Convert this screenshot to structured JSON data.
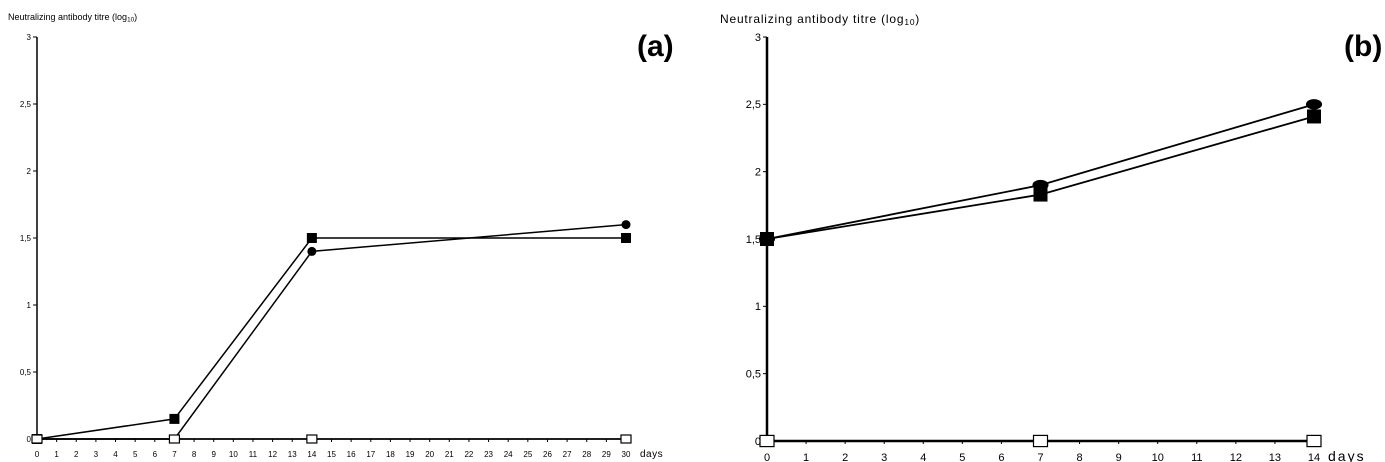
{
  "chart_data": [
    {
      "type": "line",
      "panel_label": "(a)",
      "ylabel_main": "Neutralizing antibody titre (log",
      "ylabel_sub": "10",
      "ylabel_close": ")",
      "xlabel": "days",
      "xlim": [
        0,
        30
      ],
      "ylim": [
        0,
        3
      ],
      "xticks": [
        0,
        1,
        2,
        3,
        4,
        5,
        6,
        7,
        8,
        9,
        10,
        11,
        12,
        13,
        14,
        15,
        16,
        17,
        18,
        19,
        20,
        21,
        22,
        23,
        24,
        25,
        26,
        27,
        28,
        29,
        30
      ],
      "yticks": [
        {
          "value": 0,
          "label": "0"
        },
        {
          "value": 0.5,
          "label": "0,5"
        },
        {
          "value": 1,
          "label": "1"
        },
        {
          "value": 1.5,
          "label": "1,5"
        },
        {
          "value": 2,
          "label": "2"
        },
        {
          "value": 2.5,
          "label": "2,5"
        },
        {
          "value": 3,
          "label": "3"
        }
      ],
      "grid": false,
      "series": [
        {
          "marker": "filled-square",
          "x": [
            0,
            7,
            14,
            30
          ],
          "y": [
            0,
            0.15,
            1.5,
            1.5
          ]
        },
        {
          "marker": "filled-circle",
          "x": [
            0,
            7,
            14,
            30
          ],
          "y": [
            0,
            0,
            1.4,
            1.6
          ]
        },
        {
          "marker": "open-square",
          "x": [
            0,
            7,
            14,
            30
          ],
          "y": [
            0,
            0,
            0,
            0
          ]
        }
      ]
    },
    {
      "type": "line",
      "panel_label": "(b)",
      "ylabel_main": "Neutralizing antibody titre (log",
      "ylabel_sub": "10",
      "ylabel_close": ")",
      "xlabel": "days",
      "xlim": [
        0,
        14
      ],
      "ylim": [
        0,
        3
      ],
      "xticks": [
        0,
        1,
        2,
        3,
        4,
        5,
        6,
        7,
        8,
        9,
        10,
        11,
        12,
        13,
        14
      ],
      "yticks": [
        {
          "value": 0,
          "label": "0"
        },
        {
          "value": 0.5,
          "label": "0,5"
        },
        {
          "value": 1,
          "label": "1"
        },
        {
          "value": 1.5,
          "label": "1,5"
        },
        {
          "value": 2,
          "label": "2"
        },
        {
          "value": 2.5,
          "label": "2,5"
        },
        {
          "value": 3,
          "label": "3"
        }
      ],
      "grid": false,
      "series": [
        {
          "marker": "filled-ellipse",
          "x": [
            0,
            7,
            14
          ],
          "y": [
            1.5,
            1.9,
            2.5
          ]
        },
        {
          "marker": "filled-square",
          "x": [
            0,
            7,
            14
          ],
          "y": [
            1.5,
            1.83,
            2.41
          ]
        },
        {
          "marker": "open-square",
          "x": [
            0,
            7,
            14
          ],
          "y": [
            0,
            0,
            0
          ]
        }
      ]
    }
  ]
}
